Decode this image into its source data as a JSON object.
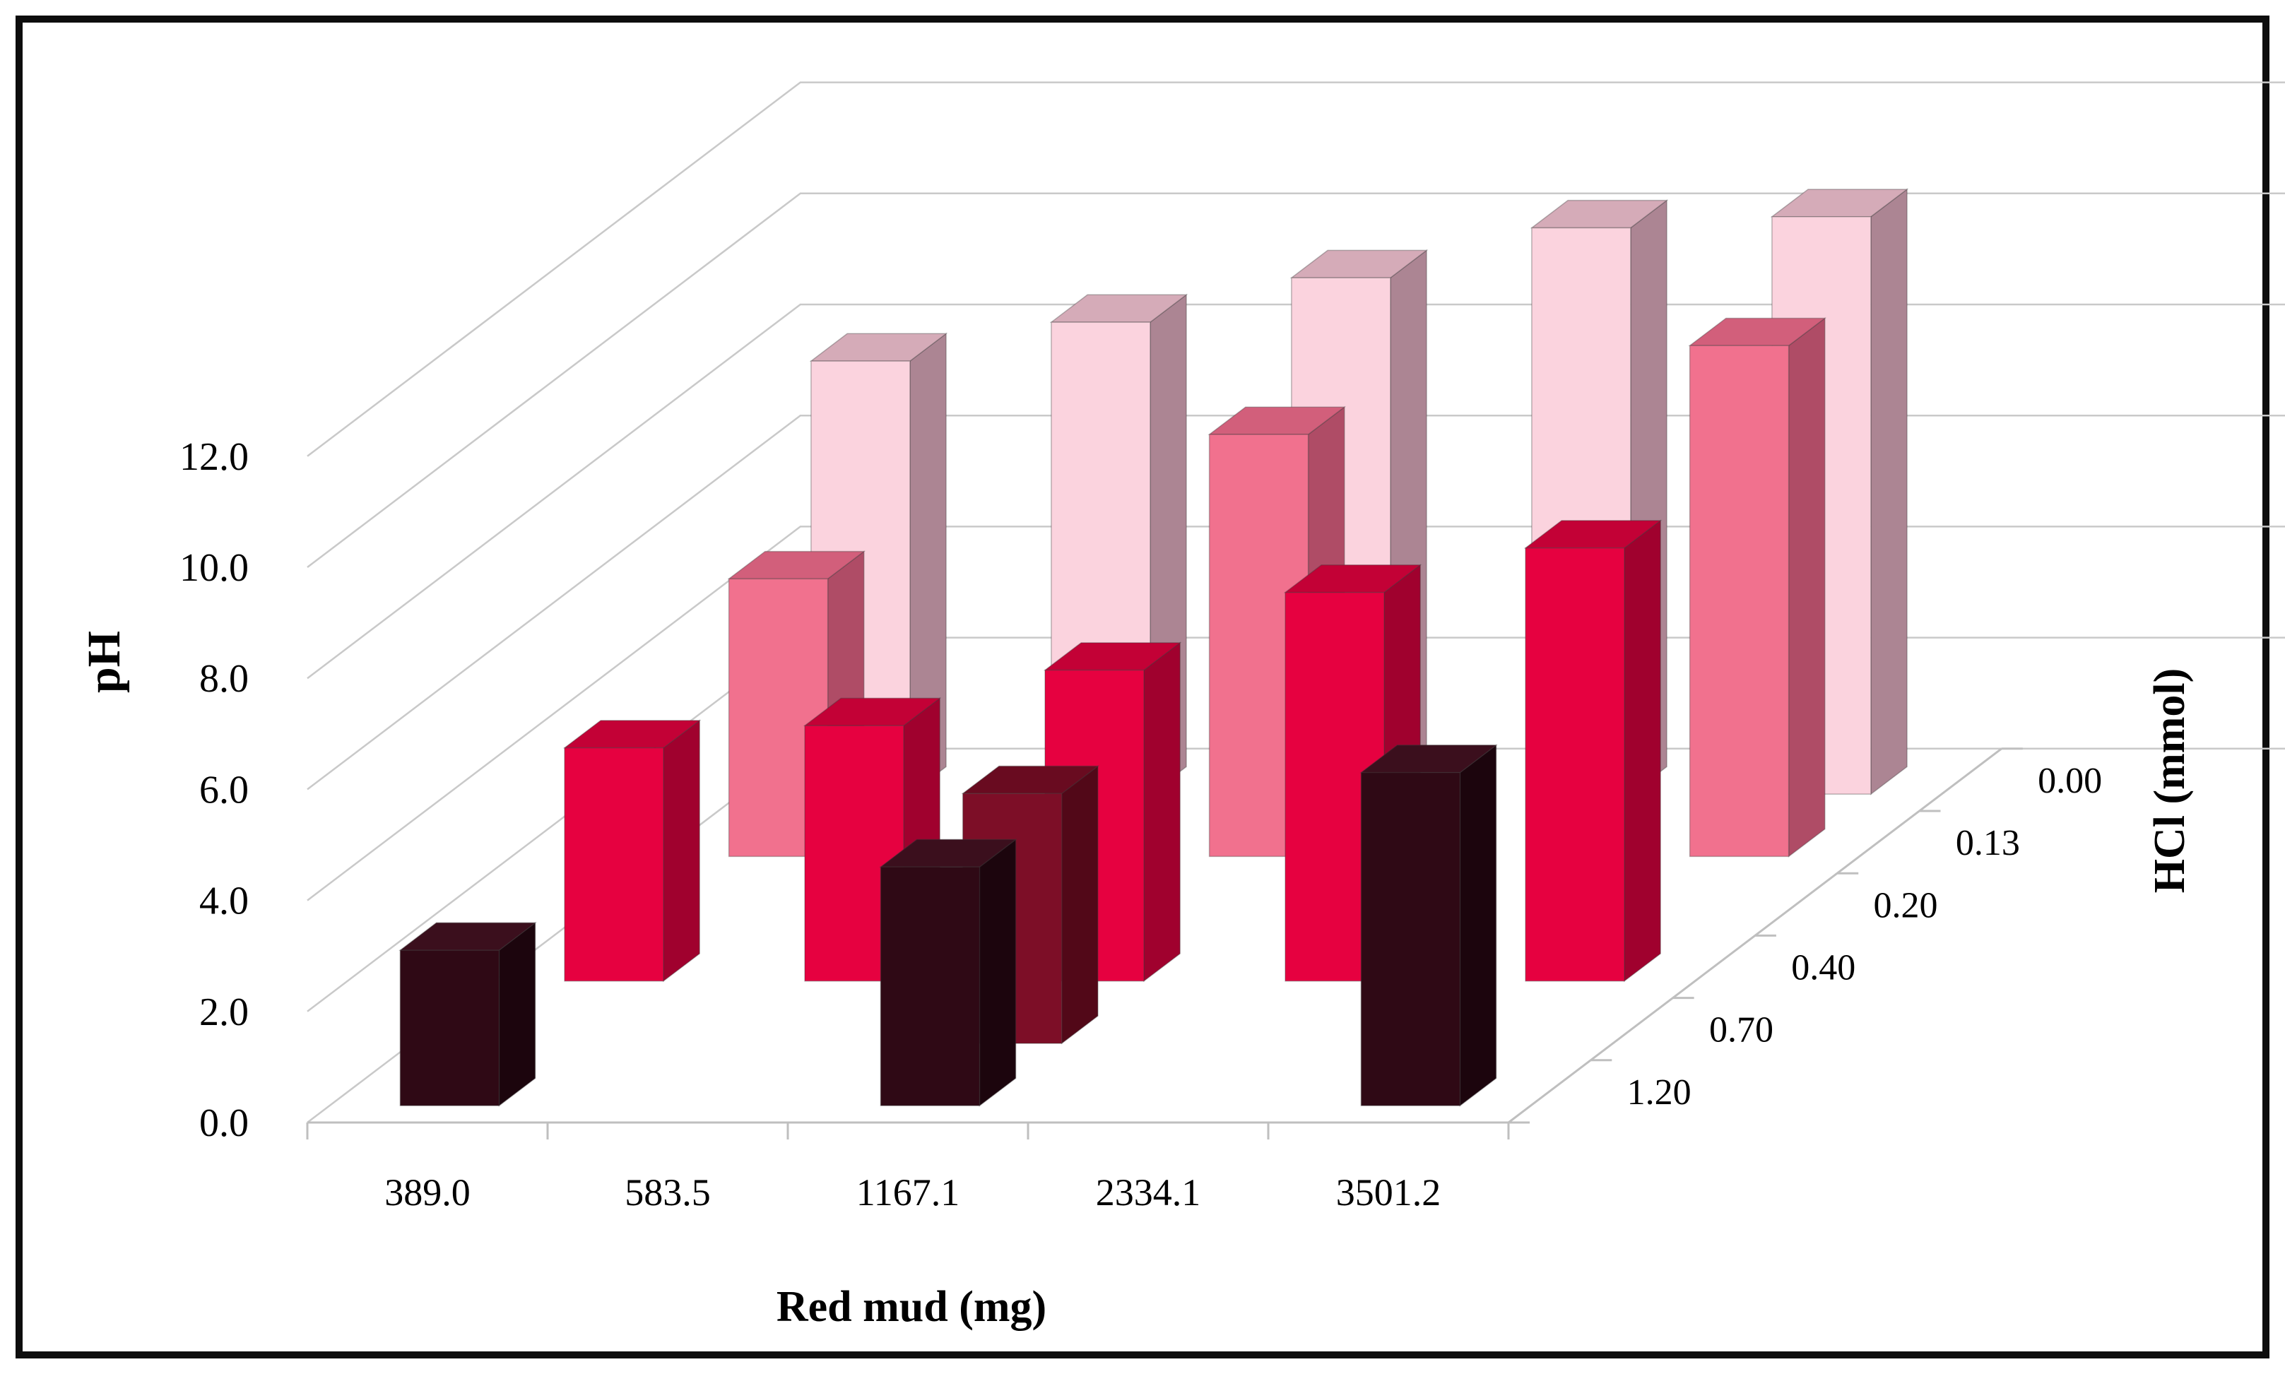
{
  "figure": {
    "background": "#ffffff",
    "frame_color": "#0d0d0d",
    "gridline_color": "#c9c9c9",
    "axis_line_color": "#bfbfbf",
    "text_color": "#000000"
  },
  "chart_data": {
    "type": "bar",
    "subtype": "3d-column",
    "title": "",
    "xlabel": "Red mud (mg)",
    "ylabel": "pH",
    "zlabel": "HCl (mmol)",
    "categories": [
      "389.0",
      "583.5",
      "1167.1",
      "2334.1",
      "3501.2"
    ],
    "y_tick_labels": [
      "0.0",
      "2.0",
      "4.0",
      "6.0",
      "8.0",
      "10.0",
      "12.0"
    ],
    "y_tick_values": [
      0,
      2,
      4,
      6,
      8,
      10,
      12
    ],
    "ylim": [
      0,
      12
    ],
    "grid": true,
    "legend_position": "none",
    "depth_axis_labels_front_to_back": [
      "1.20",
      "0.70",
      "0.40",
      "0.20",
      "0.13",
      "0.00"
    ],
    "series": [
      {
        "name": "1.20",
        "depth_row": 0,
        "values": [
          2.8,
          null,
          4.3,
          null,
          6.0
        ],
        "color": {
          "front": "#2F0915",
          "top": "#3B0F1D",
          "side": "#1C050D"
        }
      },
      {
        "name": "0.70",
        "depth_row": 1,
        "values": [
          null,
          null,
          4.5,
          null,
          null
        ],
        "color": {
          "front": "#7D0E27",
          "top": "#690B20",
          "side": "#520818"
        }
      },
      {
        "name": "0.40",
        "depth_row": 2,
        "values": [
          4.2,
          4.6,
          5.6,
          7.0,
          7.8
        ],
        "color": {
          "front": "#E60140",
          "top": "#C30136",
          "side": "#A0012E"
        }
      },
      {
        "name": "0.20",
        "depth_row": 3,
        "values": [
          null,
          null,
          null,
          null,
          null
        ],
        "color": {
          "front": "#E83A62",
          "top": "#C72F53",
          "side": "#A02544"
        }
      },
      {
        "name": "0.13",
        "depth_row": 4,
        "values": [
          5.0,
          null,
          7.6,
          null,
          9.2
        ],
        "color": {
          "front": "#F1718E",
          "top": "#D25F7B",
          "side": "#AF4C66"
        }
      },
      {
        "name": "0.00",
        "depth_row": 5,
        "values": [
          7.8,
          8.5,
          9.3,
          10.2,
          10.4
        ],
        "color": {
          "front": "#FBD3DE",
          "top": "#D5ABB8",
          "side": "#AC8593"
        }
      }
    ]
  }
}
